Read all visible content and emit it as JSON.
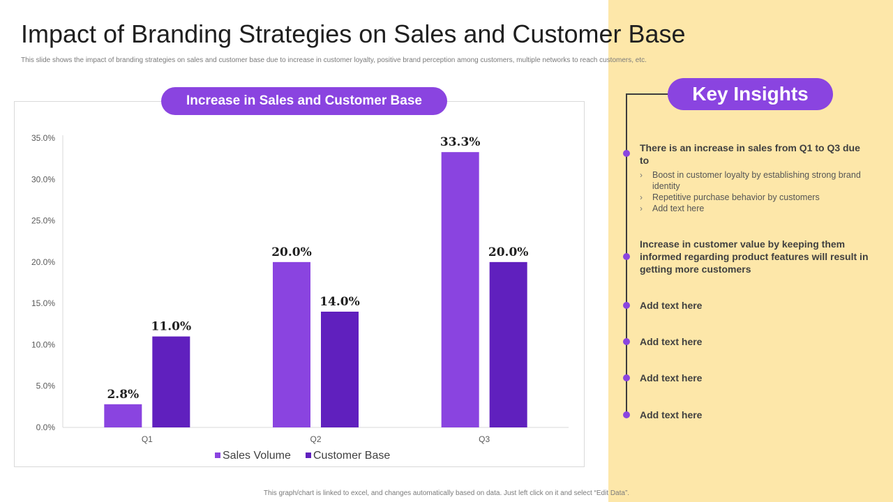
{
  "title": "Impact of Branding Strategies on Sales and Customer Base",
  "subtitle": "This slide shows the impact of branding strategies on sales and customer base due to increase in customer loyalty, positive brand perception among customers, multiple networks to reach customers, etc.",
  "footnote": "This graph/chart is linked to excel, and changes automatically based on data. Just left click on it and select “Edit Data”.",
  "chart_header": "Increase in Sales and Customer Base",
  "colors": {
    "accent": "#8A44E0",
    "series_dark": "#6020BE",
    "panel": "#FDE7A9"
  },
  "chart_data": {
    "type": "bar",
    "title": "Increase in Sales and Customer Base",
    "categories": [
      "Q1",
      "Q2",
      "Q3"
    ],
    "series": [
      {
        "name": "Sales Volume",
        "values": [
          2.8,
          20.0,
          33.3
        ],
        "labels": [
          "2.8%",
          "20.0%",
          "33.3%"
        ],
        "color": "#8A44E0"
      },
      {
        "name": "Customer Base",
        "values": [
          11.0,
          14.0,
          20.0
        ],
        "labels": [
          "11.0%",
          "14.0%",
          "20.0%"
        ],
        "color": "#6020BE"
      }
    ],
    "ylim": [
      0,
      35
    ],
    "yticks": [
      "0.0%",
      "5.0%",
      "10.0%",
      "15.0%",
      "20.0%",
      "25.0%",
      "30.0%",
      "35.0%"
    ],
    "xlabel": "",
    "ylabel": "",
    "legend": "bottom",
    "grid": false
  },
  "insights": {
    "header": "Key Insights",
    "main": {
      "text": "There is an increase in sales from Q1 to Q3 due to",
      "bullets": [
        "Boost in customer loyalty by establishing strong brand identity",
        "Repetitive  purchase behavior  by customers",
        "Add text here"
      ]
    },
    "items": [
      "Increase in customer value by keeping them informed regarding product features will result in getting more customers",
      "Add  text here",
      "Add  text here",
      "Add  text here",
      "Add  text here"
    ]
  }
}
